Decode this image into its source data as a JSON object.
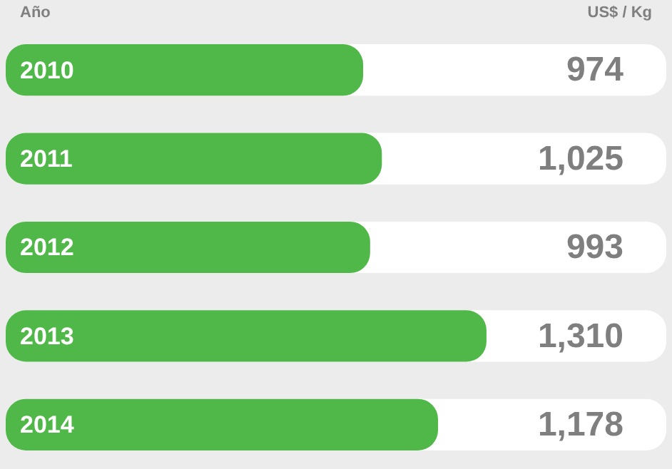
{
  "chart_data": {
    "type": "bar",
    "orientation": "horizontal",
    "annotations": [
      "Año",
      "US$ / Kg"
    ],
    "categories": [
      "2010",
      "2011",
      "2012",
      "2013",
      "2014"
    ],
    "values": [
      974,
      1025,
      993,
      1310,
      1178
    ],
    "value_labels": [
      "974",
      "1,025",
      "993",
      "1,310",
      "1,178"
    ],
    "color": "#50b848",
    "legend": false
  }
}
